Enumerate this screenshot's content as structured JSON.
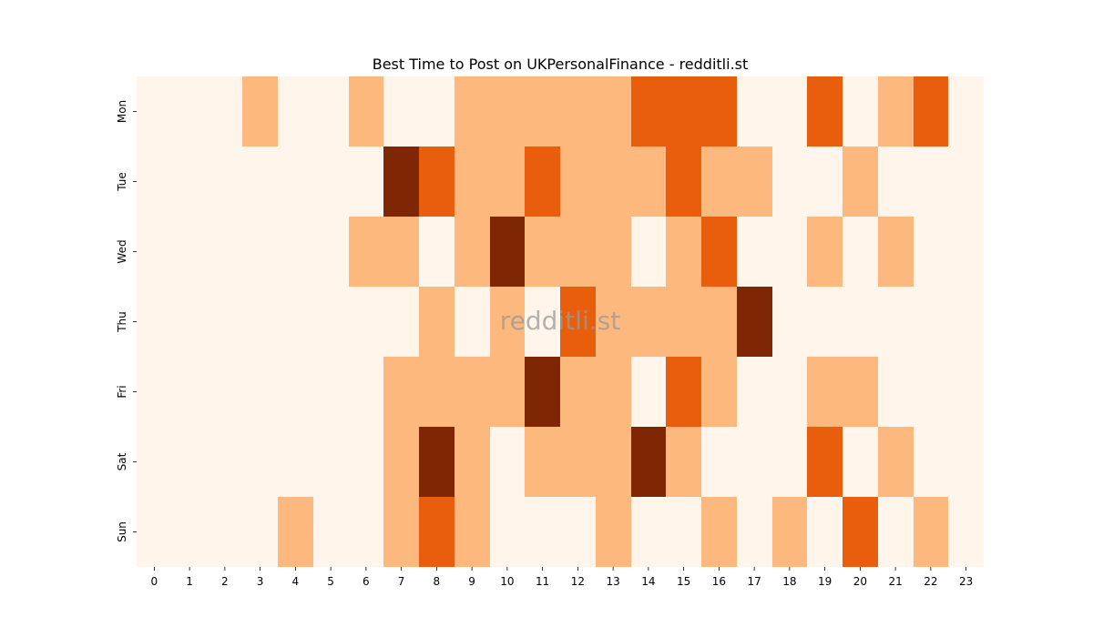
{
  "chart_data": {
    "type": "heatmap",
    "title": "Best Time to Post on UKPersonalFinance - redditli.st",
    "watermark": "redditli.st",
    "xlabel": "",
    "ylabel": "",
    "x_categories": [
      "0",
      "1",
      "2",
      "3",
      "4",
      "5",
      "6",
      "7",
      "8",
      "9",
      "10",
      "11",
      "12",
      "13",
      "14",
      "15",
      "16",
      "17",
      "18",
      "19",
      "20",
      "21",
      "22",
      "23"
    ],
    "y_categories": [
      "Mon",
      "Tue",
      "Wed",
      "Thu",
      "Fri",
      "Sat",
      "Sun"
    ],
    "value_range": [
      0,
      3
    ],
    "colors": [
      "#fff5eb",
      "#fdb97d",
      "#e95e0d",
      "#7f2704"
    ],
    "values": [
      [
        0,
        0,
        0,
        1,
        0,
        0,
        1,
        0,
        0,
        1,
        1,
        1,
        1,
        1,
        2,
        2,
        2,
        0,
        0,
        2,
        0,
        1,
        2,
        0
      ],
      [
        0,
        0,
        0,
        0,
        0,
        0,
        0,
        3,
        2,
        1,
        1,
        2,
        1,
        1,
        1,
        2,
        1,
        1,
        0,
        0,
        1,
        0,
        0,
        0
      ],
      [
        0,
        0,
        0,
        0,
        0,
        0,
        1,
        1,
        0,
        1,
        3,
        1,
        1,
        1,
        0,
        1,
        2,
        0,
        0,
        1,
        0,
        1,
        0,
        0
      ],
      [
        0,
        0,
        0,
        0,
        0,
        0,
        0,
        0,
        1,
        0,
        1,
        0,
        2,
        1,
        1,
        1,
        1,
        3,
        0,
        0,
        0,
        0,
        0,
        0
      ],
      [
        0,
        0,
        0,
        0,
        0,
        0,
        0,
        1,
        1,
        1,
        1,
        3,
        1,
        1,
        0,
        2,
        1,
        0,
        0,
        1,
        1,
        0,
        0,
        0
      ],
      [
        0,
        0,
        0,
        0,
        0,
        0,
        0,
        1,
        3,
        1,
        0,
        1,
        1,
        1,
        3,
        1,
        0,
        0,
        0,
        2,
        0,
        1,
        0,
        0
      ],
      [
        0,
        0,
        0,
        0,
        1,
        0,
        0,
        1,
        2,
        1,
        0,
        0,
        0,
        1,
        0,
        0,
        1,
        0,
        1,
        0,
        2,
        0,
        1,
        0
      ]
    ]
  }
}
